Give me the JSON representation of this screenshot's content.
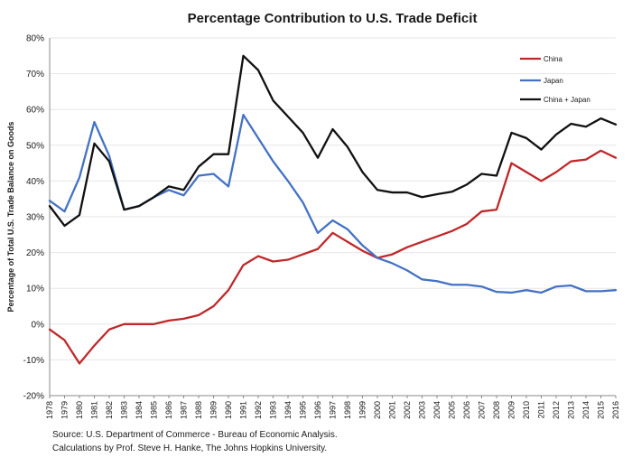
{
  "chart_data": {
    "type": "line",
    "title": "Percentage Contribution to U.S. Trade Deficit",
    "ylabel": "Percentage of Total U.S. Trade Balance on Goods",
    "xlabel": "",
    "ylim": [
      -20,
      80
    ],
    "yticks": [
      "-20%",
      "-10%",
      "0%",
      "10%",
      "20%",
      "30%",
      "40%",
      "50%",
      "60%",
      "70%",
      "80%"
    ],
    "ytick_values": [
      -20,
      -10,
      0,
      10,
      20,
      30,
      40,
      50,
      60,
      70,
      80
    ],
    "grid": true,
    "legend_position": "top-right",
    "x": [
      "1978",
      "1979",
      "1980",
      "1981",
      "1982",
      "1983",
      "1984",
      "1985",
      "1986",
      "1987",
      "1988",
      "1989",
      "1990",
      "1991",
      "1992",
      "1993",
      "1994",
      "1995",
      "1996",
      "1997",
      "1998",
      "1999",
      "2000",
      "2001",
      "2002",
      "2003",
      "2004",
      "2005",
      "2006",
      "2007",
      "2008",
      "2009",
      "2010",
      "2011",
      "2012",
      "2013",
      "2014",
      "2015",
      "2016"
    ],
    "series": [
      {
        "name": "China",
        "color": "#c0282a",
        "values": [
          -1.5,
          -4.5,
          -11,
          -6,
          -1.5,
          0,
          0,
          0,
          1,
          1.5,
          2.5,
          5,
          9.5,
          16.5,
          19,
          17.5,
          18,
          19.5,
          21,
          25.5,
          23,
          20.5,
          18.5,
          19.5,
          21.5,
          23,
          24.5,
          26,
          28,
          31.5,
          32,
          45,
          42.5,
          40,
          42.5,
          45.5,
          46,
          48.5,
          46.5
        ]
      },
      {
        "name": "Japan",
        "color": "#4472c4",
        "values": [
          34.5,
          31.5,
          41,
          56.5,
          47,
          32,
          33,
          35.5,
          37.5,
          36,
          41.5,
          42,
          38.5,
          58.5,
          52,
          45.5,
          40,
          34,
          25.5,
          29,
          26.5,
          22,
          18.5,
          17,
          15,
          12.5,
          12,
          11,
          11,
          10.5,
          9,
          8.8,
          9.5,
          8.8,
          10.5,
          10.8,
          9.2,
          9.2,
          9.5
        ]
      },
      {
        "name": "China + Japan",
        "color": "#111111",
        "values": [
          33,
          27.5,
          30.5,
          50.5,
          45.5,
          32,
          33,
          35.5,
          38.5,
          37.5,
          44,
          47.5,
          47.5,
          75,
          71,
          62.5,
          58,
          53.5,
          46.5,
          54.5,
          49.5,
          42.5,
          37.5,
          36.8,
          36.8,
          35.5,
          36.3,
          37,
          39,
          42,
          41.5,
          53.5,
          52,
          48.8,
          53,
          56,
          55.2,
          57.5,
          55.8
        ]
      }
    ]
  },
  "source": {
    "line1": "Source: U.S. Department of Commerce - Bureau of Economic Analysis.",
    "line2": "Calculations by Prof. Steve H. Hanke, The Johns Hopkins University."
  }
}
